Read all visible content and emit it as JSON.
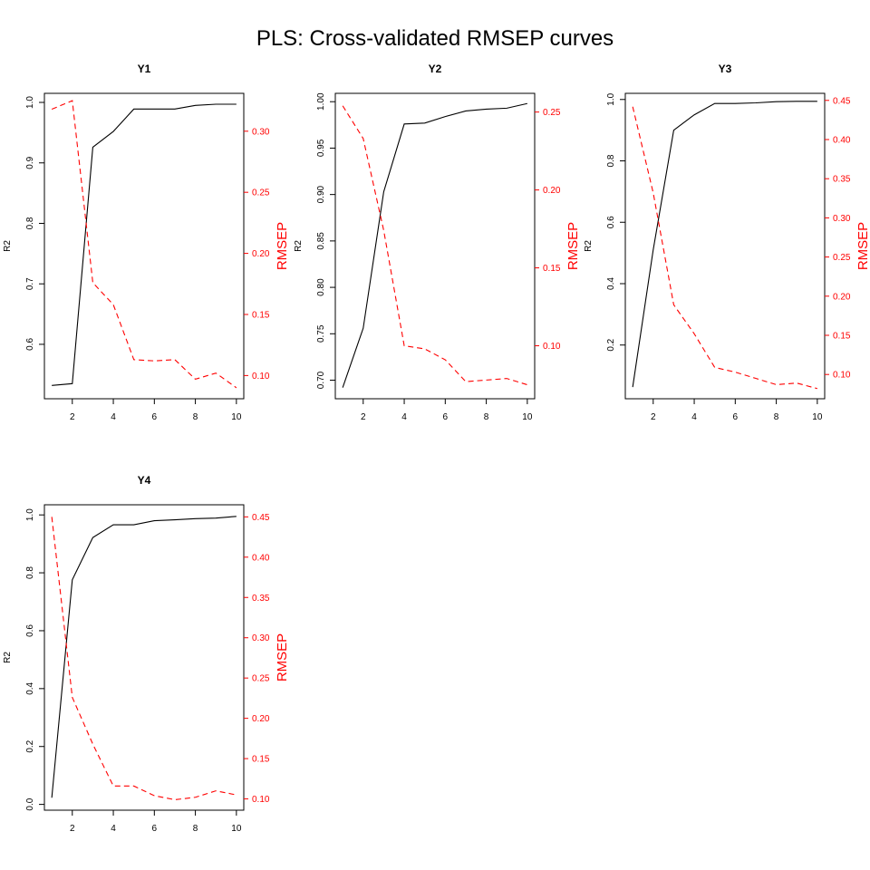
{
  "chart_data": {
    "title": "PLS: Cross-validated RMSEP curves",
    "type": "line",
    "panels": [
      {
        "title": "Y1",
        "xlabel": "",
        "x": [
          1,
          2,
          3,
          4,
          5,
          6,
          7,
          8,
          9,
          10
        ],
        "xlim": [
          0.64,
          10.36
        ],
        "x_ticks": [
          2,
          4,
          6,
          8,
          10
        ],
        "left_axis": {
          "label": "R2",
          "ylim": [
            0.51,
            1.015
          ],
          "ticks": [
            0.6,
            0.7,
            0.8,
            0.9,
            1.0
          ],
          "tick_labels": [
            "0.6",
            "0.7",
            "0.8",
            "0.9",
            "1.0"
          ]
        },
        "right_axis": {
          "label": "RMSEP",
          "color": "#ff0000",
          "ylim": [
            0.081,
            0.331
          ],
          "ticks": [
            0.1,
            0.15,
            0.2,
            0.25,
            0.3
          ],
          "tick_labels": [
            "0.10",
            "0.15",
            "0.20",
            "0.25",
            "0.30"
          ]
        },
        "series": [
          {
            "name": "R2",
            "axis": "left",
            "style": "solid",
            "color": "#000000",
            "values": [
              0.532,
              0.535,
              0.926,
              0.952,
              0.989,
              0.989,
              0.989,
              0.995,
              0.997,
              0.997
            ]
          },
          {
            "name": "RMSEP",
            "axis": "right",
            "style": "dashed",
            "color": "#ff0000",
            "values": [
              0.318,
              0.325,
              0.176,
              0.158,
              0.113,
              0.112,
              0.113,
              0.097,
              0.102,
              0.09
            ]
          }
        ]
      },
      {
        "title": "Y2",
        "xlabel": "",
        "x": [
          1,
          2,
          3,
          4,
          5,
          6,
          7,
          8,
          9,
          10
        ],
        "xlim": [
          0.64,
          10.36
        ],
        "x_ticks": [
          2,
          4,
          6,
          8,
          10
        ],
        "left_axis": {
          "label": "R2",
          "ylim": [
            0.68,
            1.009
          ],
          "ticks": [
            0.7,
            0.75,
            0.8,
            0.85,
            0.9,
            0.95,
            1.0
          ],
          "tick_labels": [
            "0.70",
            "0.75",
            "0.80",
            "0.85",
            "0.90",
            "0.95",
            "1.00"
          ]
        },
        "right_axis": {
          "label": "RMSEP",
          "color": "#ff0000",
          "ylim": [
            0.066,
            0.262
          ],
          "ticks": [
            0.1,
            0.15,
            0.2,
            0.25
          ],
          "tick_labels": [
            "0.10",
            "0.15",
            "0.20",
            "0.25"
          ]
        },
        "series": [
          {
            "name": "R2",
            "axis": "left",
            "style": "solid",
            "color": "#000000",
            "values": [
              0.692,
              0.756,
              0.903,
              0.976,
              0.977,
              0.984,
              0.99,
              0.992,
              0.993,
              0.998
            ]
          },
          {
            "name": "RMSEP",
            "axis": "right",
            "style": "dashed",
            "color": "#ff0000",
            "values": [
              0.254,
              0.233,
              0.174,
              0.1,
              0.098,
              0.091,
              0.077,
              0.078,
              0.079,
              0.075
            ]
          }
        ]
      },
      {
        "title": "Y3",
        "xlabel": "",
        "x": [
          1,
          2,
          3,
          4,
          5,
          6,
          7,
          8,
          9,
          10
        ],
        "xlim": [
          0.64,
          10.36
        ],
        "x_ticks": [
          2,
          4,
          6,
          8,
          10
        ],
        "left_axis": {
          "label": "R2",
          "ylim": [
            0.025,
            1.02
          ],
          "ticks": [
            0.2,
            0.4,
            0.6,
            0.8,
            1.0
          ],
          "tick_labels": [
            "0.2",
            "0.4",
            "0.6",
            "0.8",
            "1.0"
          ]
        },
        "right_axis": {
          "label": "RMSEP",
          "color": "#ff0000",
          "ylim": [
            0.069,
            0.459
          ],
          "ticks": [
            0.1,
            0.15,
            0.2,
            0.25,
            0.3,
            0.35,
            0.4,
            0.45
          ],
          "tick_labels": [
            "0.10",
            "0.15",
            "0.20",
            "0.25",
            "0.30",
            "0.35",
            "0.40",
            "0.45"
          ]
        },
        "series": [
          {
            "name": "R2",
            "axis": "left",
            "style": "solid",
            "color": "#000000",
            "values": [
              0.063,
              0.51,
              0.9,
              0.95,
              0.987,
              0.987,
              0.989,
              0.993,
              0.994,
              0.994
            ]
          },
          {
            "name": "RMSEP",
            "axis": "right",
            "style": "dashed",
            "color": "#ff0000",
            "values": [
              0.442,
              0.332,
              0.189,
              0.152,
              0.109,
              0.103,
              0.095,
              0.087,
              0.089,
              0.082
            ]
          }
        ]
      },
      {
        "title": "Y4",
        "xlabel": "",
        "x": [
          1,
          2,
          3,
          4,
          5,
          6,
          7,
          8,
          9,
          10
        ],
        "xlim": [
          0.64,
          10.36
        ],
        "x_ticks": [
          2,
          4,
          6,
          8,
          10
        ],
        "left_axis": {
          "label": "R2",
          "ylim": [
            -0.02,
            1.035
          ],
          "ticks": [
            0.0,
            0.2,
            0.4,
            0.6,
            0.8,
            1.0
          ],
          "tick_labels": [
            "0.0",
            "0.2",
            "0.4",
            "0.6",
            "0.8",
            "1.0"
          ]
        },
        "right_axis": {
          "label": "RMSEP",
          "color": "#ff0000",
          "ylim": [
            0.086,
            0.465
          ],
          "ticks": [
            0.1,
            0.15,
            0.2,
            0.25,
            0.3,
            0.35,
            0.4,
            0.45
          ],
          "tick_labels": [
            "0.10",
            "0.15",
            "0.20",
            "0.25",
            "0.30",
            "0.35",
            "0.40",
            "0.45"
          ]
        },
        "series": [
          {
            "name": "R2",
            "axis": "left",
            "style": "solid",
            "color": "#000000",
            "values": [
              0.023,
              0.776,
              0.922,
              0.966,
              0.966,
              0.98,
              0.983,
              0.987,
              0.989,
              0.995
            ]
          },
          {
            "name": "RMSEP",
            "axis": "right",
            "style": "dashed",
            "color": "#ff0000",
            "values": [
              0.45,
              0.226,
              0.168,
              0.116,
              0.116,
              0.104,
              0.099,
              0.102,
              0.11,
              0.105
            ]
          }
        ]
      }
    ]
  }
}
